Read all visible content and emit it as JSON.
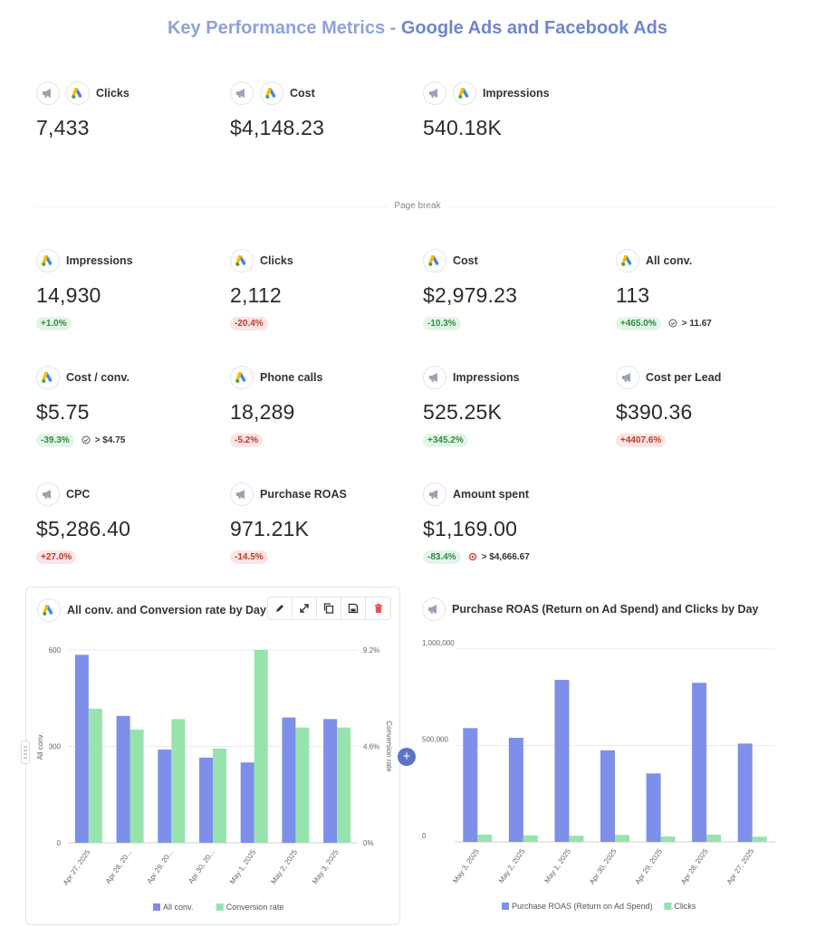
{
  "report": {
    "title_part1": "Key Performance Metrics - ",
    "title_part2": "Google Ads and Facebook Ads"
  },
  "colors": {
    "title_light": "#8ea2dc",
    "title_dark": "#6f86cf",
    "series_blue": "#7d8fe8",
    "series_green": "#97e3ae",
    "positive": "#2f8a44",
    "negative": "#c0392b"
  },
  "summary": [
    {
      "label": "Clicks",
      "value": "7,433",
      "icons": [
        "facebook-ads-icon",
        "google-ads-icon"
      ]
    },
    {
      "label": "Cost",
      "value": "$4,148.23",
      "icons": [
        "facebook-ads-icon",
        "google-ads-icon"
      ]
    },
    {
      "label": "Impressions",
      "value": "540.18K",
      "icons": [
        "facebook-ads-icon",
        "google-ads-icon"
      ]
    }
  ],
  "page_break": {
    "label": "Page break"
  },
  "metrics": [
    {
      "label": "Impressions",
      "value": "14,930",
      "change": "+1.0%",
      "trend": "green",
      "icon": "google-ads-icon"
    },
    {
      "label": "Clicks",
      "value": "2,112",
      "change": "-20.4%",
      "trend": "red",
      "icon": "google-ads-icon"
    },
    {
      "label": "Cost",
      "value": "$2,979.23",
      "change": "-10.3%",
      "trend": "green",
      "icon": "google-ads-icon"
    },
    {
      "label": "All conv.",
      "value": "113",
      "change": "+465.0%",
      "trend": "green",
      "icon": "google-ads-icon",
      "goal": "> 11.67",
      "goal_icon": "goal-check-icon"
    },
    {
      "label": "Cost / conv.",
      "value": "$5.75",
      "change": "-39.3%",
      "trend": "green",
      "icon": "google-ads-icon",
      "goal": "> $4.75",
      "goal_icon": "goal-check-icon"
    },
    {
      "label": "Phone calls",
      "value": "18,289",
      "change": "-5.2%",
      "trend": "red",
      "icon": "google-ads-icon"
    },
    {
      "label": "Impressions",
      "value": "525.25K",
      "change": "+345.2%",
      "trend": "green",
      "icon": "facebook-ads-icon"
    },
    {
      "label": "Cost per Lead",
      "value": "$390.36",
      "change": "+4407.6%",
      "trend": "red",
      "icon": "facebook-ads-icon"
    },
    {
      "label": "CPC",
      "value": "$5,286.40",
      "change": "+27.0%",
      "trend": "red",
      "icon": "facebook-ads-icon"
    },
    {
      "label": "Purchase ROAS",
      "value": "971.21K",
      "change": "-14.5%",
      "trend": "red",
      "icon": "facebook-ads-icon"
    },
    {
      "label": "Amount spent",
      "value": "$1,169.00",
      "change": "-83.4%",
      "trend": "green",
      "icon": "facebook-ads-icon",
      "goal": "> $4,666.67",
      "goal_icon": "goal-target-icon"
    }
  ],
  "chart1_header": {
    "title": "All conv. and Conversion rate by Day",
    "icon": "google-ads-icon"
  },
  "chart2_header": {
    "title": "Purchase ROAS (Return on Ad Spend) and Clicks by Day",
    "icon": "facebook-ads-icon"
  },
  "toolbar": [
    "edit-icon",
    "expand-icon",
    "copy-icon",
    "save-icon",
    "delete-icon"
  ],
  "chart_data": [
    {
      "type": "bar",
      "title": "All conv. and Conversion rate by Day",
      "categories": [
        "Apr 27, 2025",
        "Apr 28, 20...",
        "Apr 29, 20...",
        "Apr 30, 20...",
        "May 1, 2025",
        "May 2, 2025",
        "May 3, 2025"
      ],
      "series": [
        {
          "name": "All conv.",
          "axis": "left",
          "color": "#7d8fe8",
          "values": [
            585,
            395,
            290,
            265,
            250,
            390,
            385
          ]
        },
        {
          "name": "Conversion rate",
          "axis": "right",
          "color": "#97e3ae",
          "values": [
            6.4,
            5.4,
            5.9,
            4.5,
            9.2,
            5.5,
            5.5
          ]
        }
      ],
      "ylabel": "All conv.",
      "y2label": "Conversion rate",
      "yticks": [
        "0",
        "300",
        "600"
      ],
      "y2ticks": [
        "0%",
        "4.6%",
        "9.2%"
      ],
      "ylim": [
        0,
        600
      ],
      "y2lim": [
        0,
        9.2
      ],
      "legend": "bottom"
    },
    {
      "type": "bar",
      "title": "Purchase ROAS (Return on Ad Spend) and Clicks by Day",
      "categories": [
        "May 3, 2025",
        "May 2, 2025",
        "May 1, 2025",
        "Apr 30, 2025",
        "Apr 29, 2025",
        "Apr 28, 2025",
        "Apr 27, 2025"
      ],
      "series": [
        {
          "name": "Purchase ROAS (Return on Ad Spend)",
          "color": "#7d8fe8",
          "values": [
            590000,
            540000,
            840000,
            475000,
            355000,
            825000,
            510000
          ]
        },
        {
          "name": "Clicks",
          "color": "#97e3ae",
          "values": [
            38000,
            34000,
            32000,
            36000,
            28000,
            38000,
            27000
          ]
        }
      ],
      "yticks": [
        "0",
        "500,000",
        "1,000,000"
      ],
      "ylim": [
        0,
        1000000
      ],
      "legend": "bottom"
    }
  ]
}
